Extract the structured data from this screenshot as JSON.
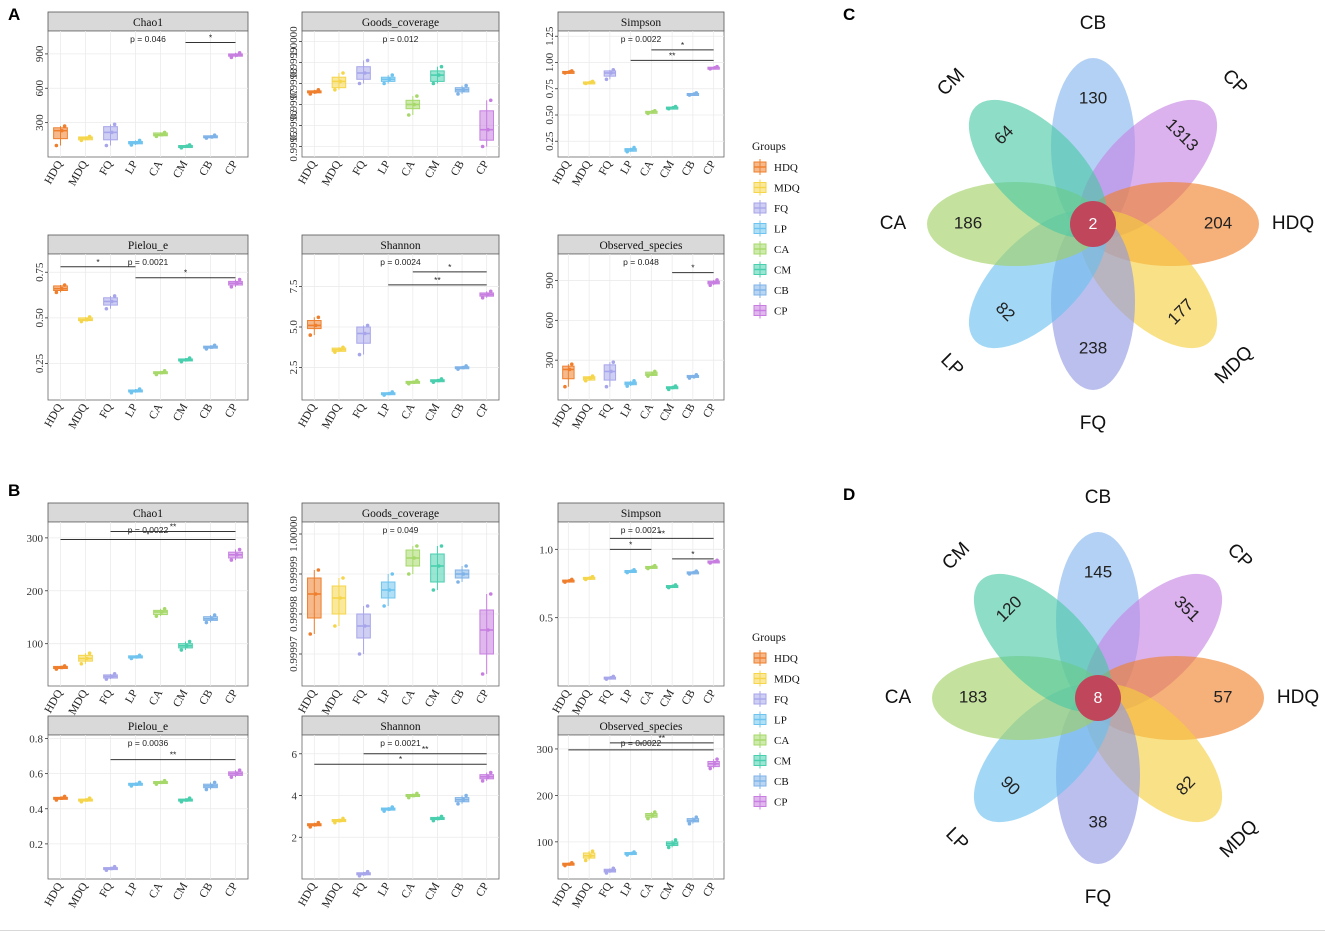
{
  "panel_labels": [
    "A",
    "B",
    "C",
    "D"
  ],
  "groups": [
    "HDQ",
    "MDQ",
    "FQ",
    "LP",
    "CA",
    "CM",
    "CB",
    "CP"
  ],
  "group_colors": [
    "#ef7f2d",
    "#f5d54a",
    "#a7a6ea",
    "#6fc4ef",
    "#a6d86a",
    "#49cfae",
    "#7fb3e8",
    "#c77ee0"
  ],
  "legend_title": "Groups",
  "chart_data": [
    {
      "panel": "A",
      "type": "box",
      "title": "Chao1",
      "p_value": "p = 0.046",
      "ylim": [
        0,
        1100
      ],
      "yticks": [
        300,
        600,
        900
      ],
      "ytick_labels": [
        "300",
        "600",
        "900"
      ],
      "rotate_y": true,
      "medians": [
        230,
        165,
        215,
        125,
        195,
        95,
        175,
        890
      ],
      "q1": [
        160,
        150,
        150,
        115,
        185,
        85,
        170,
        880
      ],
      "q3": [
        255,
        175,
        265,
        135,
        210,
        100,
        185,
        900
      ],
      "whisker_low": [
        100,
        145,
        100,
        105,
        180,
        80,
        165,
        870
      ],
      "whisker_high": [
        270,
        180,
        285,
        145,
        215,
        105,
        190,
        910
      ],
      "brackets": [
        {
          "from": "CM",
          "to": "CP",
          "y": 1000,
          "label": "*"
        }
      ]
    },
    {
      "panel": "A",
      "type": "box",
      "title": "Goods_coverage",
      "p_value": "p = 0.012",
      "ylim": [
        0.99945,
        1.00005
      ],
      "yticks": [
        0.9995,
        0.9996,
        0.9997,
        0.9998,
        0.9999,
        1.0
      ],
      "ytick_labels": [
        "0.9995",
        "0.9996",
        "0.9997",
        "0.9998",
        "0.9999",
        "1.0000"
      ],
      "rotate_y": true,
      "medians": [
        0.99976,
        0.99981,
        0.99985,
        0.99982,
        0.9997,
        0.99984,
        0.99977,
        0.99958
      ],
      "q1": [
        0.999758,
        0.99978,
        0.99982,
        0.99981,
        0.99968,
        0.99981,
        0.99976,
        0.99953
      ],
      "q3": [
        0.999765,
        0.99983,
        0.99988,
        0.99983,
        0.99972,
        0.99986,
        0.99978,
        0.99967
      ],
      "whisker_low": [
        0.99975,
        0.99977,
        0.9998,
        0.9998,
        0.99965,
        0.9998,
        0.99975,
        0.9995
      ],
      "whisker_high": [
        0.99977,
        0.99985,
        0.99991,
        0.99984,
        0.99974,
        0.99988,
        0.99979,
        0.99972
      ],
      "brackets": []
    },
    {
      "panel": "A",
      "type": "box",
      "title": "Simpson",
      "p_value": "p = 0.0022",
      "ylim": [
        0.1,
        1.3
      ],
      "yticks": [
        0.25,
        0.5,
        0.75,
        1.0,
        1.25
      ],
      "ytick_labels": [
        "0.25",
        "0.50",
        "0.75",
        "1.00",
        "1.25"
      ],
      "rotate_y": true,
      "medians": [
        0.91,
        0.81,
        0.9,
        0.17,
        0.53,
        0.57,
        0.7,
        0.95
      ],
      "q1": [
        0.905,
        0.805,
        0.87,
        0.155,
        0.52,
        0.565,
        0.695,
        0.945
      ],
      "q3": [
        0.915,
        0.815,
        0.92,
        0.18,
        0.535,
        0.575,
        0.705,
        0.955
      ],
      "whisker_low": [
        0.9,
        0.8,
        0.84,
        0.15,
        0.515,
        0.56,
        0.69,
        0.94
      ],
      "whisker_high": [
        0.92,
        0.82,
        0.93,
        0.19,
        0.54,
        0.58,
        0.71,
        0.96
      ],
      "brackets": [
        {
          "from": "LP",
          "to": "CP",
          "y": 1.02,
          "label": "**"
        },
        {
          "from": "CA",
          "to": "CP",
          "y": 1.12,
          "label": "*"
        }
      ]
    },
    {
      "panel": "A",
      "type": "box",
      "title": "Pielou_e",
      "p_value": "p = 0.0021",
      "ylim": [
        0.05,
        0.85
      ],
      "yticks": [
        0.25,
        0.5,
        0.75
      ],
      "ytick_labels": [
        "0.25",
        "0.50",
        "0.75"
      ],
      "rotate_y": true,
      "medians": [
        0.66,
        0.49,
        0.59,
        0.1,
        0.2,
        0.27,
        0.34,
        0.69
      ],
      "q1": [
        0.65,
        0.485,
        0.57,
        0.095,
        0.195,
        0.265,
        0.335,
        0.68
      ],
      "q3": [
        0.675,
        0.5,
        0.61,
        0.105,
        0.205,
        0.275,
        0.345,
        0.7
      ],
      "whisker_low": [
        0.64,
        0.48,
        0.55,
        0.09,
        0.19,
        0.26,
        0.33,
        0.67
      ],
      "whisker_high": [
        0.68,
        0.505,
        0.62,
        0.11,
        0.21,
        0.28,
        0.35,
        0.71
      ],
      "brackets": [
        {
          "from": "HDQ",
          "to": "LP",
          "y": 0.78,
          "label": "*"
        },
        {
          "from": "LP",
          "to": "CP",
          "y": 0.72,
          "label": "*"
        }
      ]
    },
    {
      "panel": "A",
      "type": "box",
      "title": "Shannon",
      "p_value": "p = 0.0024",
      "ylim": [
        0.5,
        9.5
      ],
      "yticks": [
        2.5,
        5.0,
        7.5
      ],
      "ytick_labels": [
        "2.5",
        "5.0",
        "7.5"
      ],
      "rotate_y": true,
      "medians": [
        5.1,
        3.6,
        4.6,
        0.9,
        1.6,
        1.7,
        2.5,
        7.0
      ],
      "q1": [
        4.9,
        3.5,
        4.0,
        0.85,
        1.55,
        1.65,
        2.45,
        6.9
      ],
      "q3": [
        5.4,
        3.7,
        5.0,
        0.95,
        1.65,
        1.75,
        2.55,
        7.1
      ],
      "whisker_low": [
        4.5,
        3.45,
        3.3,
        0.8,
        1.5,
        1.6,
        2.4,
        6.8
      ],
      "whisker_high": [
        5.6,
        3.75,
        5.1,
        1.0,
        1.7,
        1.8,
        2.6,
        7.2
      ],
      "brackets": [
        {
          "from": "LP",
          "to": "CP",
          "y": 7.6,
          "label": "**"
        },
        {
          "from": "CA",
          "to": "CP",
          "y": 8.4,
          "label": "*"
        }
      ]
    },
    {
      "panel": "A",
      "type": "box",
      "title": "Observed_species",
      "p_value": "p = 0.048",
      "ylim": [
        0,
        1100
      ],
      "yticks": [
        300,
        600,
        900
      ],
      "ytick_labels": [
        "300",
        "600",
        "900"
      ],
      "rotate_y": true,
      "medians": [
        230,
        165,
        215,
        125,
        195,
        95,
        175,
        885
      ],
      "q1": [
        160,
        150,
        150,
        115,
        185,
        85,
        170,
        875
      ],
      "q3": [
        255,
        175,
        265,
        135,
        210,
        100,
        185,
        895
      ],
      "whisker_low": [
        100,
        145,
        100,
        105,
        180,
        80,
        165,
        865
      ],
      "whisker_high": [
        270,
        180,
        285,
        145,
        215,
        105,
        190,
        905
      ],
      "brackets": [
        {
          "from": "CM",
          "to": "CP",
          "y": 960,
          "label": "*"
        }
      ]
    },
    {
      "panel": "B",
      "type": "box",
      "title": "Chao1",
      "p_value": "p = 0.0022",
      "ylim": [
        20,
        330
      ],
      "yticks": [
        100,
        200,
        300
      ],
      "ytick_labels": [
        "100",
        "200",
        "300"
      ],
      "rotate_y": false,
      "medians": [
        55,
        72,
        38,
        75,
        160,
        96,
        147,
        268
      ],
      "q1": [
        53,
        67,
        35,
        73,
        155,
        92,
        144,
        262
      ],
      "q3": [
        57,
        78,
        41,
        77,
        163,
        100,
        151,
        273
      ],
      "whisker_low": [
        52,
        62,
        33,
        72,
        152,
        88,
        140,
        258
      ],
      "whisker_high": [
        58,
        82,
        43,
        78,
        166,
        104,
        154,
        278
      ],
      "brackets": [
        {
          "from": "HDQ",
          "to": "CP",
          "y": 297,
          "label": "*"
        },
        {
          "from": "FQ",
          "to": "CP",
          "y": 312,
          "label": "**"
        }
      ]
    },
    {
      "panel": "B",
      "type": "box",
      "title": "Goods_coverage",
      "p_value": "p = 0.049",
      "ylim": [
        0.999962,
        1.000003
      ],
      "yticks": [
        0.99997,
        0.99998,
        0.99999,
        1.0
      ],
      "ytick_labels": [
        "0.99997",
        "0.99998",
        "0.99999",
        "1.00000"
      ],
      "rotate_y": true,
      "medians": [
        0.999985,
        0.999984,
        0.999977,
        0.999986,
        0.999994,
        0.999992,
        0.99999,
        0.999976
      ],
      "q1": [
        0.999979,
        0.99998,
        0.999974,
        0.999984,
        0.999992,
        0.999988,
        0.999989,
        0.99997
      ],
      "q3": [
        0.999989,
        0.999987,
        0.99998,
        0.999988,
        0.999996,
        0.999995,
        0.999991,
        0.999981
      ],
      "whisker_low": [
        0.999975,
        0.999977,
        0.99997,
        0.999982,
        0.99999,
        0.999986,
        0.999988,
        0.999965
      ],
      "whisker_high": [
        0.999991,
        0.999989,
        0.999982,
        0.99999,
        0.999997,
        0.999997,
        0.999992,
        0.999985
      ],
      "brackets": []
    },
    {
      "panel": "B",
      "type": "box",
      "title": "Simpson",
      "p_value": "p = 0.0021",
      "ylim": [
        0.0,
        1.2
      ],
      "yticks": [
        0.5,
        1.0
      ],
      "ytick_labels": [
        "0.5",
        "1.0"
      ],
      "rotate_y": false,
      "medians": [
        0.77,
        0.79,
        0.06,
        0.84,
        0.87,
        0.73,
        0.83,
        0.91
      ],
      "q1": [
        0.765,
        0.785,
        0.055,
        0.835,
        0.865,
        0.725,
        0.825,
        0.905
      ],
      "q3": [
        0.775,
        0.795,
        0.065,
        0.845,
        0.875,
        0.735,
        0.835,
        0.915
      ],
      "whisker_low": [
        0.76,
        0.78,
        0.05,
        0.83,
        0.86,
        0.72,
        0.82,
        0.9
      ],
      "whisker_high": [
        0.78,
        0.8,
        0.07,
        0.85,
        0.88,
        0.74,
        0.84,
        0.92
      ],
      "brackets": [
        {
          "from": "FQ",
          "to": "CA",
          "y": 1.0,
          "label": "*"
        },
        {
          "from": "FQ",
          "to": "CP",
          "y": 1.08,
          "label": "**"
        },
        {
          "from": "CM",
          "to": "CP",
          "y": 0.93,
          "label": "*"
        }
      ]
    },
    {
      "panel": "B",
      "type": "box",
      "title": "Pielou_e",
      "p_value": "p = 0.0036",
      "ylim": [
        0.0,
        0.82
      ],
      "yticks": [
        0.2,
        0.4,
        0.6,
        0.8
      ],
      "ytick_labels": [
        "0.2",
        "0.4",
        "0.6",
        "0.8"
      ],
      "rotate_y": false,
      "medians": [
        0.46,
        0.45,
        0.06,
        0.54,
        0.55,
        0.45,
        0.53,
        0.6
      ],
      "q1": [
        0.455,
        0.445,
        0.055,
        0.535,
        0.545,
        0.445,
        0.52,
        0.59
      ],
      "q3": [
        0.465,
        0.455,
        0.065,
        0.545,
        0.555,
        0.455,
        0.54,
        0.61
      ],
      "whisker_low": [
        0.45,
        0.44,
        0.05,
        0.53,
        0.54,
        0.44,
        0.51,
        0.58
      ],
      "whisker_high": [
        0.47,
        0.46,
        0.07,
        0.55,
        0.56,
        0.46,
        0.55,
        0.62
      ],
      "brackets": [
        {
          "from": "FQ",
          "to": "CP",
          "y": 0.68,
          "label": "**"
        }
      ]
    },
    {
      "panel": "B",
      "type": "box",
      "title": "Shannon",
      "p_value": "p = 0.0021",
      "ylim": [
        0.0,
        6.9
      ],
      "yticks": [
        2,
        4,
        6
      ],
      "ytick_labels": [
        "2",
        "4",
        "6"
      ],
      "rotate_y": false,
      "medians": [
        2.6,
        2.8,
        0.25,
        3.35,
        4.0,
        2.9,
        3.8,
        4.9
      ],
      "q1": [
        2.55,
        2.75,
        0.2,
        3.3,
        3.95,
        2.85,
        3.7,
        4.8
      ],
      "q3": [
        2.65,
        2.85,
        0.3,
        3.4,
        4.05,
        2.95,
        3.9,
        5.0
      ],
      "whisker_low": [
        2.5,
        2.7,
        0.15,
        3.25,
        3.9,
        2.8,
        3.6,
        4.7
      ],
      "whisker_high": [
        2.7,
        2.9,
        0.35,
        3.45,
        4.1,
        3.0,
        4.0,
        5.1
      ],
      "brackets": [
        {
          "from": "HDQ",
          "to": "CP",
          "y": 5.5,
          "label": "*"
        },
        {
          "from": "FQ",
          "to": "CP",
          "y": 6.0,
          "label": "**"
        }
      ]
    },
    {
      "panel": "B",
      "type": "box",
      "title": "Observed_species",
      "p_value": "p = 0.0022",
      "ylim": [
        20,
        330
      ],
      "yticks": [
        100,
        200,
        300
      ],
      "ytick_labels": [
        "100",
        "200",
        "300"
      ],
      "rotate_y": false,
      "medians": [
        52,
        70,
        38,
        75,
        157,
        96,
        146,
        268
      ],
      "q1": [
        50,
        65,
        35,
        73,
        153,
        92,
        143,
        262
      ],
      "q3": [
        54,
        76,
        41,
        77,
        161,
        100,
        150,
        273
      ],
      "whisker_low": [
        49,
        60,
        33,
        72,
        150,
        88,
        139,
        258
      ],
      "whisker_high": [
        55,
        80,
        43,
        78,
        164,
        104,
        153,
        278
      ],
      "brackets": [
        {
          "from": "HDQ",
          "to": "CP",
          "y": 298,
          "label": "*"
        },
        {
          "from": "FQ",
          "to": "CP",
          "y": 313,
          "label": "**"
        }
      ]
    }
  ],
  "venn": [
    {
      "panel": "C",
      "core": "2",
      "petals": [
        {
          "group": "CB",
          "count": "130"
        },
        {
          "group": "CP",
          "count": "1313"
        },
        {
          "group": "HDQ",
          "count": "204"
        },
        {
          "group": "MDQ",
          "count": "177"
        },
        {
          "group": "FQ",
          "count": "238"
        },
        {
          "group": "LP",
          "count": "82"
        },
        {
          "group": "CA",
          "count": "186"
        },
        {
          "group": "CM",
          "count": "64"
        }
      ]
    },
    {
      "panel": "D",
      "core": "8",
      "petals": [
        {
          "group": "CB",
          "count": "145"
        },
        {
          "group": "CP",
          "count": "351"
        },
        {
          "group": "HDQ",
          "count": "57"
        },
        {
          "group": "MDQ",
          "count": "82"
        },
        {
          "group": "FQ",
          "count": "38"
        },
        {
          "group": "LP",
          "count": "90"
        },
        {
          "group": "CA",
          "count": "183"
        },
        {
          "group": "CM",
          "count": "120"
        }
      ]
    }
  ]
}
